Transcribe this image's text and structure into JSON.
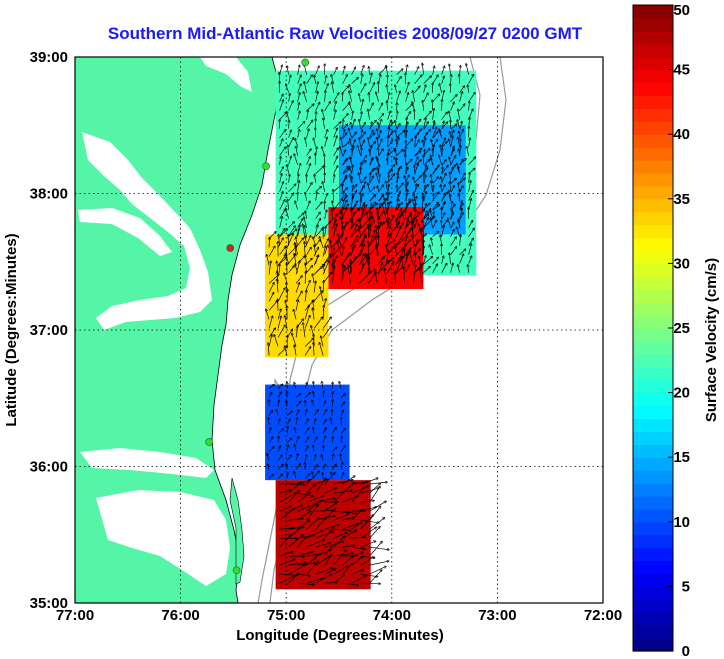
{
  "chart_data": {
    "type": "heatmap",
    "title": "Southern Mid-Atlantic Raw Velocities 2008/09/27 0200 GMT",
    "xlabel": "Longitude (Degrees:Minutes)",
    "ylabel": "Latitude (Degrees:Minutes)",
    "xlim": [
      -77,
      -72
    ],
    "ylim": [
      35,
      39
    ],
    "x_ticks": [
      {
        "value": -77,
        "label": "77:00"
      },
      {
        "value": -76,
        "label": "76:00"
      },
      {
        "value": -75,
        "label": "75:00"
      },
      {
        "value": -74,
        "label": "74:00"
      },
      {
        "value": -73,
        "label": "73:00"
      },
      {
        "value": -72,
        "label": "72:00"
      }
    ],
    "y_ticks": [
      {
        "value": 35,
        "label": "35:00"
      },
      {
        "value": 36,
        "label": "36:00"
      },
      {
        "value": 37,
        "label": "37:00"
      },
      {
        "value": 38,
        "label": "38:00"
      },
      {
        "value": 39,
        "label": "39:00"
      }
    ],
    "grid": true,
    "colorbar": {
      "label": "Surface Velocity (cm/s)",
      "range": [
        0,
        50
      ],
      "ticks": [
        {
          "value": 0,
          "label": "0"
        },
        {
          "value": 5,
          "label": "5"
        },
        {
          "value": 10,
          "label": "10"
        },
        {
          "value": 15,
          "label": "15"
        },
        {
          "value": 20,
          "label": "20"
        },
        {
          "value": 25,
          "label": "25"
        },
        {
          "value": 30,
          "label": "30"
        },
        {
          "value": 35,
          "label": "35"
        },
        {
          "value": 40,
          "label": "40"
        },
        {
          "value": 45,
          "label": "45"
        },
        {
          "value": 50,
          "label": "50"
        }
      ],
      "colormap": "jet"
    },
    "colors": {
      "land": "#55f5a8",
      "ocean": "#ffffff",
      "title": "#1a1aff",
      "coastline": "#000000",
      "bathymetry": "#999999",
      "station": "#33dd33",
      "station_alert": "#dd2222"
    },
    "velocity_regions": [
      {
        "lon": [
          -75.1,
          -73.2
        ],
        "lat": [
          37.4,
          38.9
        ],
        "speed": 22
      },
      {
        "lon": [
          -74.5,
          -73.3
        ],
        "lat": [
          37.7,
          38.5
        ],
        "speed": 14
      },
      {
        "lon": [
          -74.6,
          -73.7
        ],
        "lat": [
          37.3,
          37.9
        ],
        "speed": 44
      },
      {
        "lon": [
          -75.2,
          -74.6
        ],
        "lat": [
          36.8,
          37.7
        ],
        "speed": 33
      },
      {
        "lon": [
          -75.2,
          -74.4
        ],
        "lat": [
          35.9,
          36.6
        ],
        "speed": 10
      },
      {
        "lon": [
          -75.1,
          -74.2
        ],
        "lat": [
          35.1,
          35.9
        ],
        "speed": 47
      }
    ],
    "stations": [
      {
        "lon": -74.82,
        "lat": 38.96,
        "status": "ok"
      },
      {
        "lon": -75.19,
        "lat": 38.2,
        "status": "ok"
      },
      {
        "lon": -75.53,
        "lat": 37.6,
        "status": "alert"
      },
      {
        "lon": -75.73,
        "lat": 36.18,
        "status": "ok"
      },
      {
        "lon": -75.47,
        "lat": 35.24,
        "status": "ok"
      }
    ]
  }
}
